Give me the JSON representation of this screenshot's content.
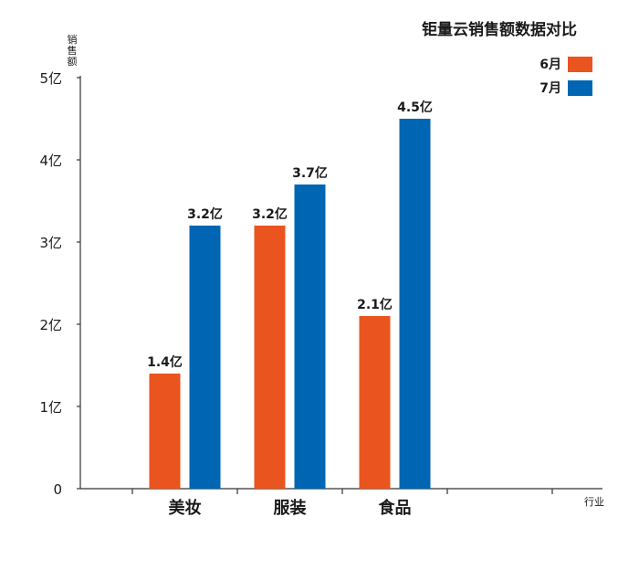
{
  "chart_data": {
    "type": "bar",
    "title": "钜量云销售额数据对比",
    "ylabel": "销售额",
    "xlabel": "行业",
    "categories": [
      "美妆",
      "服装",
      "食品"
    ],
    "series": [
      {
        "name": "6月",
        "values": [
          1.4,
          3.2,
          2.1
        ],
        "labels": [
          "1.4亿",
          "3.2亿",
          "2.1亿"
        ],
        "color": "#e9541f"
      },
      {
        "name": "7月",
        "values": [
          3.2,
          3.7,
          4.5
        ],
        "labels": [
          "3.2亿",
          "3.7亿",
          "4.5亿"
        ],
        "color": "#0066b3"
      }
    ],
    "yticks": [
      "0",
      "1亿",
      "2亿",
      "3亿",
      "4亿",
      "5亿"
    ],
    "ylim": [
      0,
      5
    ],
    "legend_position": "top-right",
    "grid": false
  }
}
